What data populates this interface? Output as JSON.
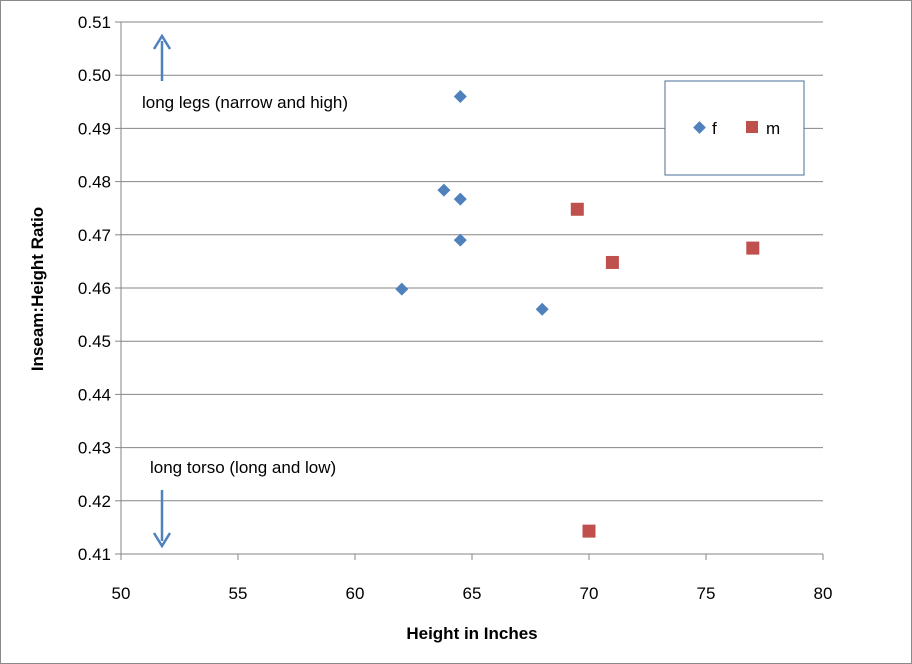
{
  "chart_data": {
    "type": "scatter",
    "title": "",
    "xlabel": "Height in Inches",
    "ylabel": "Inseam:Height Ratio",
    "xlim": [
      50,
      80
    ],
    "ylim": [
      0.41,
      0.51
    ],
    "x_ticks": [
      "50",
      "55",
      "60",
      "65",
      "70",
      "75",
      "80"
    ],
    "y_ticks": [
      "0.41",
      "0.42",
      "0.43",
      "0.44",
      "0.45",
      "0.46",
      "0.47",
      "0.48",
      "0.49",
      "0.50",
      "0.51"
    ],
    "grid": "horizontal",
    "legend_position": "top-right",
    "series": [
      {
        "name": "f",
        "marker": "diamond",
        "color": "#4F81BD",
        "points": [
          {
            "x": 64.5,
            "y": 0.496
          },
          {
            "x": 63.8,
            "y": 0.4784
          },
          {
            "x": 64.5,
            "y": 0.4767
          },
          {
            "x": 64.5,
            "y": 0.469
          },
          {
            "x": 62.0,
            "y": 0.4598
          },
          {
            "x": 68.0,
            "y": 0.456
          }
        ]
      },
      {
        "name": "m",
        "marker": "square",
        "color": "#C0504D",
        "points": [
          {
            "x": 69.5,
            "y": 0.4748
          },
          {
            "x": 71.0,
            "y": 0.4648
          },
          {
            "x": 77.0,
            "y": 0.4675
          },
          {
            "x": 70.0,
            "y": 0.4143
          }
        ]
      }
    ],
    "annotations": [
      {
        "text": "long legs (narrow and high)",
        "arrow": "up",
        "arrow_color": "#4F81BD"
      },
      {
        "text": "long torso (long and low)",
        "arrow": "down",
        "arrow_color": "#4F81BD"
      }
    ]
  }
}
